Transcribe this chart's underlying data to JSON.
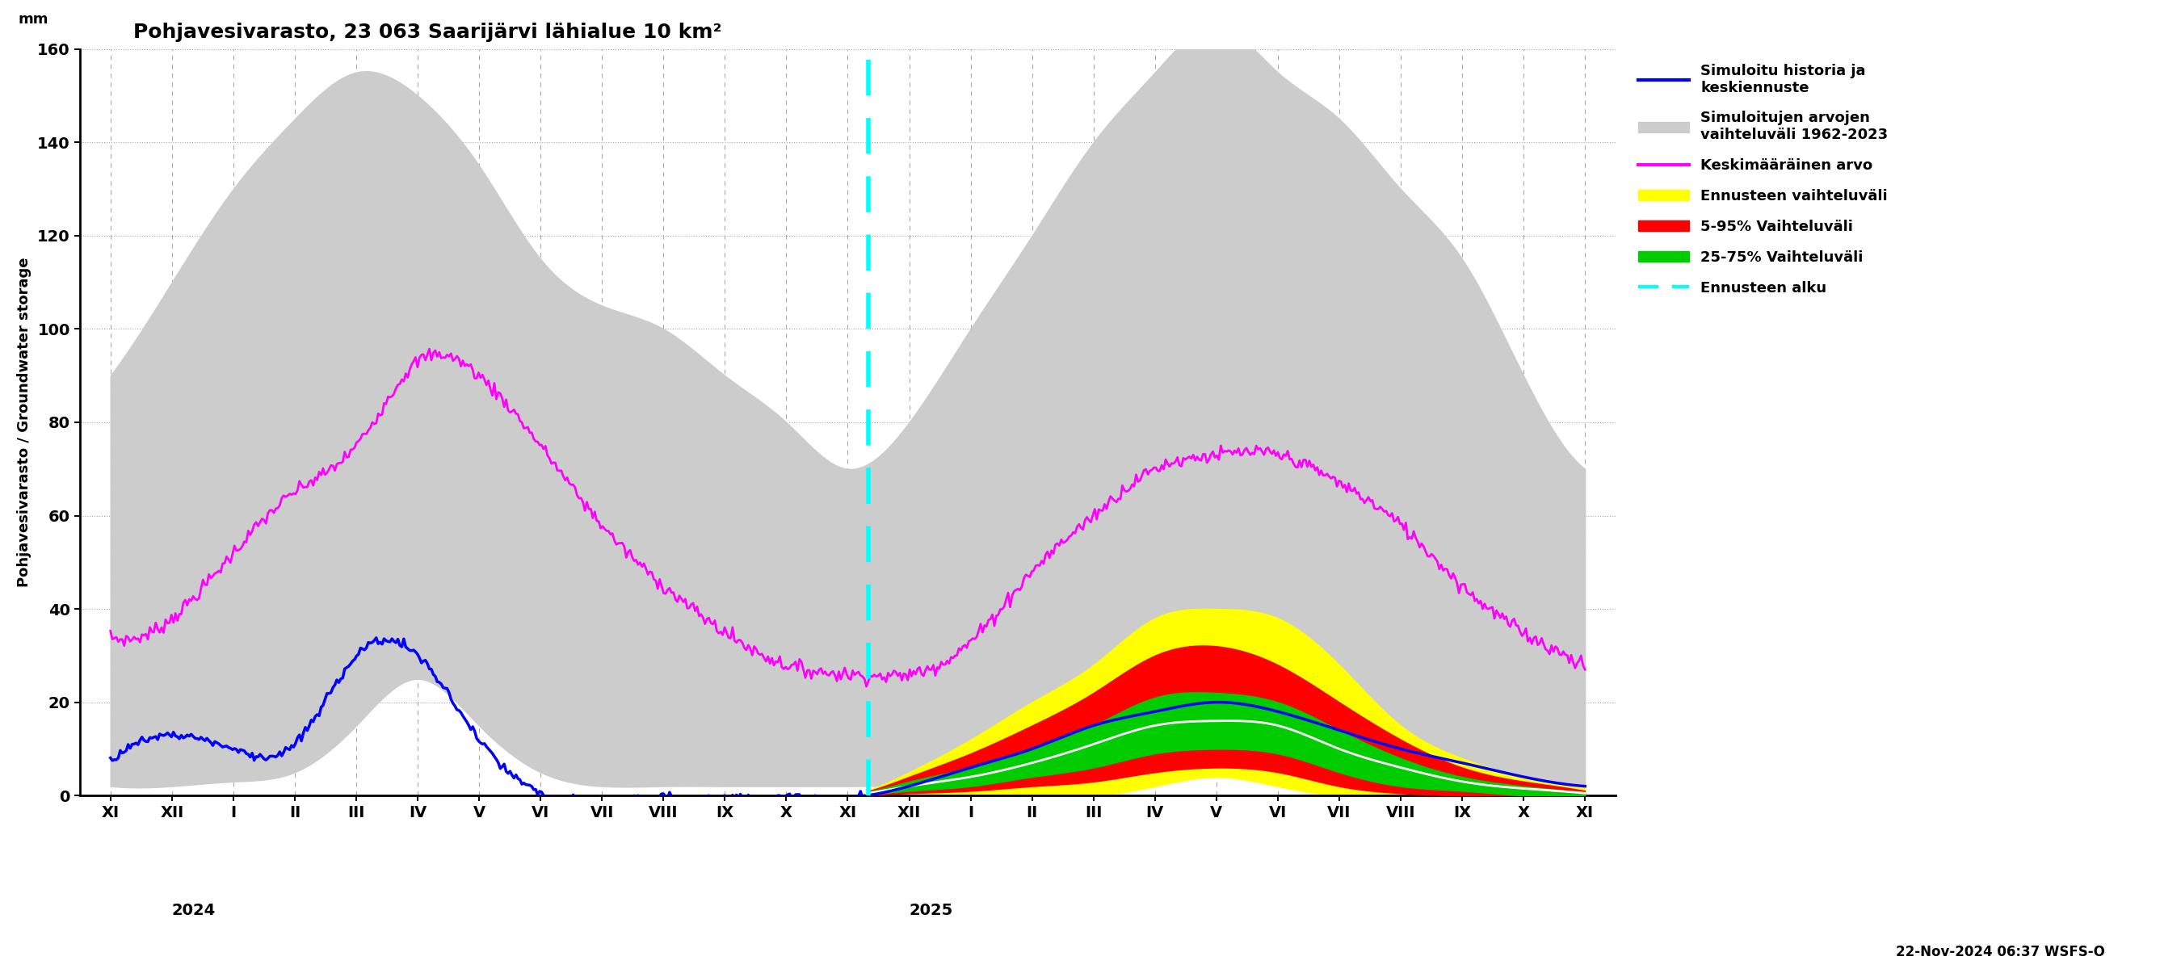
{
  "title": "Pohjavesivarasto, 23 063 Saarijärvi lähialue 10 km²",
  "ylabel_left": "Pohjavesivarasto / Groundwater storage",
  "ylabel_right": "mm",
  "ylim": [
    0,
    160
  ],
  "yticks": [
    0,
    20,
    40,
    60,
    80,
    100,
    120,
    140,
    160
  ],
  "timestamp": "22-Nov-2024 06:37 WSFS-O",
  "legend_entries": [
    "Simuloitu historia ja\nkeskiennuste",
    "Simuloitujen arvojen\nvaihteluväli 1962-2023",
    "Keskimääräinen arvo",
    "Ennusteen vaihteluväli",
    "5-95% Vaihteluväli",
    "25-75% Vaihteluväli",
    "Ennusteen alku"
  ],
  "background_color": "#ffffff",
  "forecast_start_month": 12.33,
  "x_tick_months": [
    0,
    1,
    2,
    3,
    4,
    5,
    6,
    7,
    8,
    9,
    10,
    11,
    12,
    13,
    14,
    15,
    16,
    17,
    18,
    19,
    20,
    21,
    22,
    23,
    24
  ],
  "x_labels": [
    "XI",
    "XII",
    "I",
    "II",
    "III",
    "IV",
    "V",
    "VI",
    "VII",
    "VIII",
    "IX",
    "X",
    "XI",
    "XII",
    "I",
    "II",
    "III",
    "IV",
    "V",
    "VI",
    "VII",
    "VIII",
    "IX",
    "X",
    "XI"
  ],
  "x_year_labels": [
    [
      "2024",
      1
    ],
    [
      "2025",
      13
    ]
  ],
  "n_months": 25
}
